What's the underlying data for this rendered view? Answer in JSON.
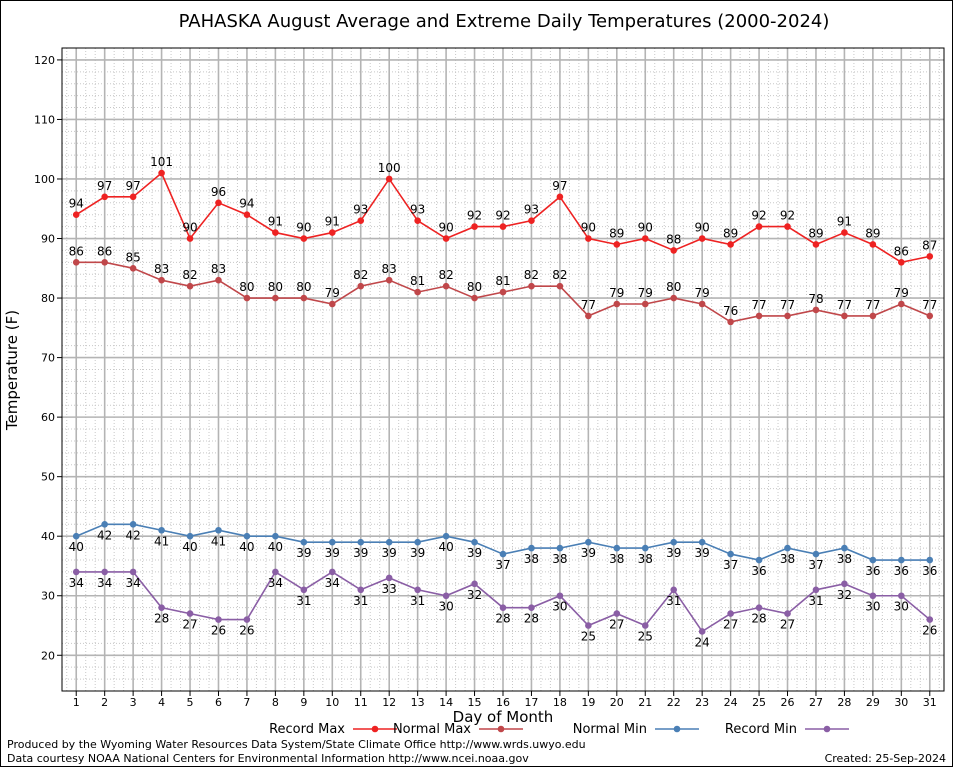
{
  "chart_data": {
    "type": "line",
    "title": "PAHASKA August Average and Extreme Daily Temperatures (2000-2024)",
    "xlabel": "Day of Month",
    "ylabel": "Temperature (F)",
    "ylim": [
      14,
      122
    ],
    "ytick_values": [
      20,
      30,
      40,
      50,
      60,
      70,
      80,
      90,
      100,
      110,
      120
    ],
    "x": [
      1,
      2,
      3,
      4,
      5,
      6,
      7,
      8,
      9,
      10,
      11,
      12,
      13,
      14,
      15,
      16,
      17,
      18,
      19,
      20,
      21,
      22,
      23,
      24,
      25,
      26,
      27,
      28,
      29,
      30,
      31
    ],
    "grid": true,
    "legend_position": "bottom",
    "series": [
      {
        "name": "Record Max",
        "color": "#ee2222",
        "labels_above": true,
        "values": [
          94,
          97,
          97,
          101,
          90,
          96,
          94,
          91,
          90,
          91,
          93,
          100,
          93,
          90,
          92,
          92,
          93,
          97,
          90,
          89,
          90,
          88,
          90,
          89,
          92,
          92,
          89,
          91,
          89,
          86,
          87
        ]
      },
      {
        "name": "Normal Max",
        "color": "#c0474a",
        "labels_above": true,
        "values": [
          86,
          86,
          85,
          83,
          82,
          83,
          80,
          80,
          80,
          79,
          82,
          83,
          81,
          82,
          80,
          81,
          82,
          82,
          77,
          79,
          79,
          80,
          79,
          76,
          77,
          77,
          78,
          77,
          77,
          79,
          77
        ]
      },
      {
        "name": "Normal Min",
        "color": "#4a7fb5",
        "labels_above": false,
        "values": [
          40,
          42,
          42,
          41,
          40,
          41,
          40,
          40,
          39,
          39,
          39,
          39,
          39,
          40,
          39,
          37,
          38,
          38,
          39,
          38,
          38,
          39,
          39,
          37,
          36,
          38,
          37,
          38,
          36,
          36,
          36
        ]
      },
      {
        "name": "Record Min",
        "color": "#8a5ea5",
        "labels_above": false,
        "values": [
          34,
          34,
          34,
          28,
          27,
          26,
          26,
          34,
          31,
          34,
          31,
          33,
          31,
          30,
          32,
          28,
          28,
          30,
          25,
          27,
          25,
          31,
          24,
          27,
          28,
          27,
          31,
          32,
          30,
          30,
          26
        ]
      }
    ]
  },
  "footer": {
    "produced_by": "Produced by the Wyoming Water Resources Data System/State Climate Office http://www.wrds.uwyo.edu",
    "data_courtesy": "Data courtesy NOAA National Centers for Environmental Information http://www.ncei.noaa.gov",
    "created": "Created:  25-Sep-2024"
  }
}
